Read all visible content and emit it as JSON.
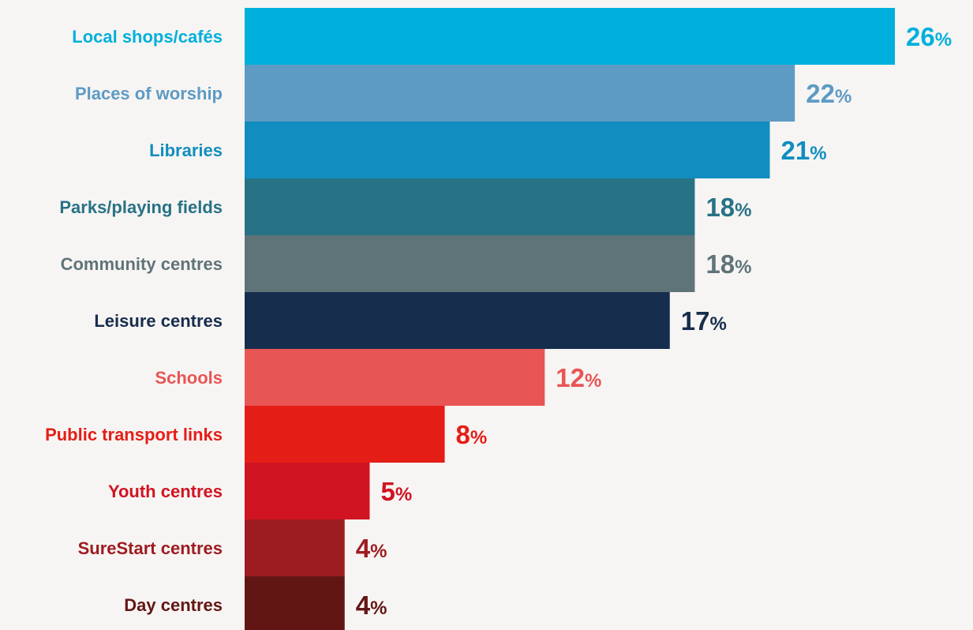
{
  "chart_data": {
    "type": "bar",
    "orientation": "horizontal",
    "title": "",
    "xlabel": "",
    "ylabel": "",
    "unit_suffix": "%",
    "xlim": [
      0,
      26
    ],
    "grid": false,
    "legend": "none",
    "categories": [
      "Local shops/cafés",
      "Places of worship",
      "Libraries",
      "Parks/playing fields",
      "Community centres",
      "Leisure centres",
      "Schools",
      "Public transport links",
      "Youth centres",
      "SureStart centres",
      "Day centres"
    ],
    "values": [
      26,
      22,
      21,
      18,
      18,
      17,
      12,
      8,
      5,
      4,
      4
    ],
    "value_labels": [
      "26",
      "22",
      "21",
      "18",
      "18",
      "17",
      "12",
      "8",
      "5",
      "4",
      "4"
    ],
    "colors": [
      "#00b0dc",
      "#5d9bc5",
      "#118dbf",
      "#287286",
      "#5f7479",
      "#172d4d",
      "#e85555",
      "#e41e17",
      "#d01422",
      "#9d1c21",
      "#621614"
    ],
    "background": "#f7f5f3"
  }
}
